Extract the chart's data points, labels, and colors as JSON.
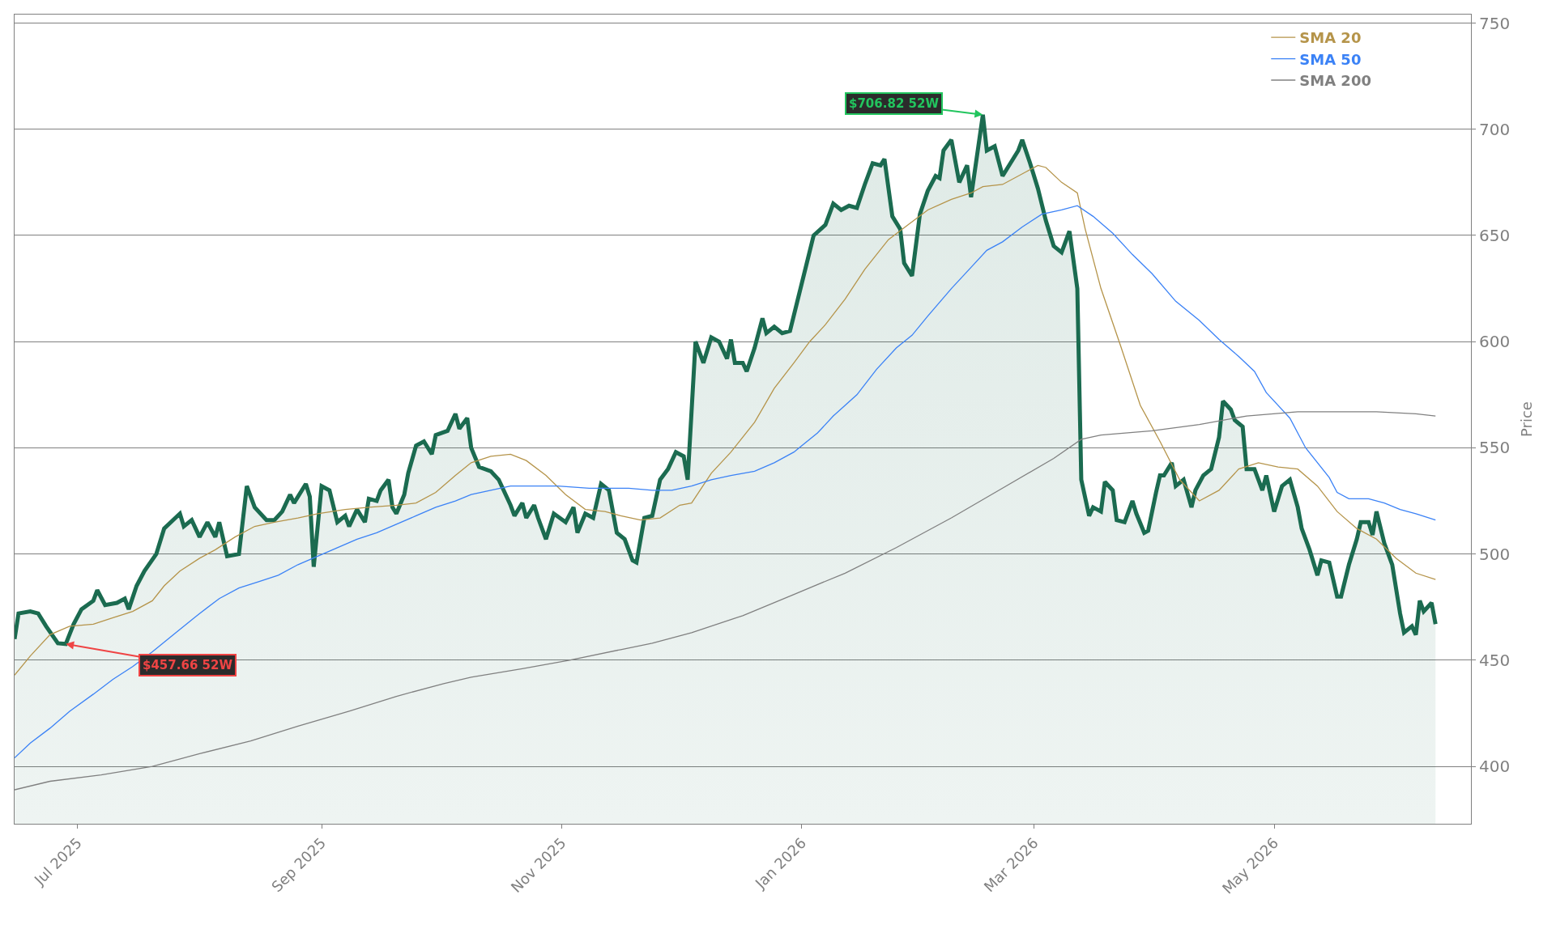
{
  "chart_data": {
    "type": "line",
    "ylabel": "Price",
    "xlim": [
      "2025-06-15",
      "2026-06-20"
    ],
    "ylim": [
      373,
      754
    ],
    "xticks": [
      {
        "value": "2025-07-01",
        "label": "Jul 2025"
      },
      {
        "value": "2025-09-01",
        "label": "Sep 2025"
      },
      {
        "value": "2025-11-01",
        "label": "Nov 2025"
      },
      {
        "value": "2026-01-01",
        "label": "Jan 2026"
      },
      {
        "value": "2026-03-01",
        "label": "Mar 2026"
      },
      {
        "value": "2026-05-01",
        "label": "May 2026"
      }
    ],
    "yticks": [
      400,
      450,
      500,
      550,
      600,
      650,
      700,
      750
    ],
    "grid": "y",
    "legend": "top right",
    "annotations": [
      {
        "text": "$706.82 52W",
        "x": "2026-02-16",
        "y": 706.82
      },
      {
        "text": "$457.66 52W",
        "x": "2025-06-28",
        "y": 457.66
      }
    ],
    "series": [
      {
        "type": "area",
        "color": "#1b6b50",
        "x": [
          "2025-06-15",
          "2025-06-16",
          "2025-06-19",
          "2025-06-21",
          "2025-06-23",
          "2025-06-26",
          "2025-06-28",
          "2025-06-30",
          "2025-07-02",
          "2025-07-05",
          "2025-07-06",
          "2025-07-08",
          "2025-07-11",
          "2025-07-13",
          "2025-07-14",
          "2025-07-16",
          "2025-07-18",
          "2025-07-21",
          "2025-07-23",
          "2025-07-27",
          "2025-07-28",
          "2025-07-30",
          "2025-08-01",
          "2025-08-03",
          "2025-08-05",
          "2025-08-06",
          "2025-08-08",
          "2025-08-11",
          "2025-08-13",
          "2025-08-15",
          "2025-08-18",
          "2025-08-20",
          "2025-08-22",
          "2025-08-24",
          "2025-08-25",
          "2025-08-28",
          "2025-08-29",
          "2025-08-30",
          "2025-09-01",
          "2025-09-03",
          "2025-09-05",
          "2025-09-07",
          "2025-09-08",
          "2025-09-10",
          "2025-09-12",
          "2025-09-13",
          "2025-09-15",
          "2025-09-16",
          "2025-09-18",
          "2025-09-19",
          "2025-09-20",
          "2025-09-22",
          "2025-09-23",
          "2025-09-25",
          "2025-09-27",
          "2025-09-29",
          "2025-09-30",
          "2025-10-03",
          "2025-10-05",
          "2025-10-06",
          "2025-10-08",
          "2025-10-09",
          "2025-10-11",
          "2025-10-14",
          "2025-10-16",
          "2025-10-17",
          "2025-10-19",
          "2025-10-20",
          "2025-10-22",
          "2025-10-23",
          "2025-10-25",
          "2025-10-26",
          "2025-10-28",
          "2025-10-30",
          "2025-11-02",
          "2025-11-04",
          "2025-11-05",
          "2025-11-07",
          "2025-11-09",
          "2025-11-11",
          "2025-11-13",
          "2025-11-15",
          "2025-11-17",
          "2025-11-19",
          "2025-11-20",
          "2025-11-22",
          "2025-11-24",
          "2025-11-26",
          "2025-11-28",
          "2025-11-30",
          "2025-12-02",
          "2025-12-03",
          "2025-12-05",
          "2025-12-07",
          "2025-12-09",
          "2025-12-11",
          "2025-12-13",
          "2025-12-14",
          "2025-12-15",
          "2025-12-17",
          "2025-12-18",
          "2025-12-20",
          "2025-12-22",
          "2025-12-23",
          "2025-12-25",
          "2025-12-27",
          "2025-12-29",
          "2025-12-31",
          "2026-01-02",
          "2026-01-04",
          "2026-01-07",
          "2026-01-09",
          "2026-01-11",
          "2026-01-13",
          "2026-01-15",
          "2026-01-17",
          "2026-01-19",
          "2026-01-21",
          "2026-01-22",
          "2026-01-24",
          "2026-01-26",
          "2026-01-27",
          "2026-01-29",
          "2026-01-31",
          "2026-02-02",
          "2026-02-04",
          "2026-02-05",
          "2026-02-06",
          "2026-02-08",
          "2026-02-10",
          "2026-02-12",
          "2026-02-13",
          "2026-02-16",
          "2026-02-17",
          "2026-02-19",
          "2026-02-21",
          "2026-02-23",
          "2026-02-25",
          "2026-02-26",
          "2026-02-28",
          "2026-03-02",
          "2026-03-04",
          "2026-03-06",
          "2026-03-08",
          "2026-03-10",
          "2026-03-12",
          "2026-03-13",
          "2026-03-15",
          "2026-03-16",
          "2026-03-18",
          "2026-03-19",
          "2026-03-21",
          "2026-03-22",
          "2026-03-24",
          "2026-03-26",
          "2026-03-27",
          "2026-03-29",
          "2026-03-30",
          "2026-04-01",
          "2026-04-02",
          "2026-04-03",
          "2026-04-05",
          "2026-04-06",
          "2026-04-08",
          "2026-04-10",
          "2026-04-11",
          "2026-04-13",
          "2026-04-15",
          "2026-04-17",
          "2026-04-18",
          "2026-04-20",
          "2026-04-21",
          "2026-04-23",
          "2026-04-24",
          "2026-04-26",
          "2026-04-28",
          "2026-04-29",
          "2026-05-01",
          "2026-05-03",
          "2026-05-05",
          "2026-05-07",
          "2026-05-08",
          "2026-05-10",
          "2026-05-12",
          "2026-05-13",
          "2026-05-15",
          "2026-05-17",
          "2026-05-18",
          "2026-05-20",
          "2026-05-22",
          "2026-05-23",
          "2026-05-25",
          "2026-05-26",
          "2026-05-27",
          "2026-05-29",
          "2026-05-31",
          "2026-06-02",
          "2026-06-03",
          "2026-06-05",
          "2026-06-06",
          "2026-06-07",
          "2026-06-08",
          "2026-06-10",
          "2026-06-11"
        ],
        "values": [
          460,
          472,
          473,
          472,
          466,
          458,
          457.66,
          467,
          474,
          478,
          483,
          476,
          477,
          479,
          474,
          485,
          492,
          500,
          512,
          519,
          513,
          516,
          508,
          515,
          508,
          515,
          499,
          500,
          532,
          522,
          516,
          516,
          520,
          528,
          524,
          533,
          527,
          494,
          532,
          530,
          515,
          518,
          513,
          521,
          515,
          526,
          525,
          530,
          535,
          522,
          519,
          528,
          538,
          551,
          553,
          547,
          556,
          558,
          566,
          559,
          564,
          550,
          541,
          539,
          535,
          531,
          523,
          518,
          524,
          517,
          523,
          517,
          507,
          519,
          515,
          522,
          510,
          519,
          517,
          533,
          530,
          510,
          507,
          497,
          496,
          517,
          518,
          535,
          540,
          548,
          546,
          535,
          600,
          590,
          602,
          600,
          592,
          601,
          590,
          590,
          586,
          597,
          611,
          604,
          607,
          604,
          605,
          620,
          635,
          650,
          655,
          665,
          662,
          664,
          663,
          674,
          684,
          683,
          686,
          659,
          653,
          637,
          631,
          660,
          671,
          678,
          677,
          690,
          695,
          675,
          683,
          668,
          706.82,
          690,
          692,
          678,
          684,
          690,
          695,
          684,
          672,
          657,
          645,
          642,
          652,
          625,
          535,
          518,
          522,
          520,
          534,
          530,
          516,
          515,
          525,
          519,
          510,
          511,
          529,
          537,
          537,
          543,
          532,
          535,
          522,
          530,
          537,
          540,
          555,
          572,
          568,
          563,
          560,
          540,
          540,
          530,
          537,
          520,
          532,
          535,
          522,
          512,
          502,
          490,
          497,
          496,
          480,
          480,
          495,
          507,
          515,
          515,
          509,
          520,
          505,
          495,
          472,
          463,
          466,
          462,
          478,
          473,
          477,
          467
        ]
      },
      {
        "name": "SMA 20",
        "color": "#b5944a",
        "x": [
          "2025-06-15",
          "2025-06-19",
          "2025-06-24",
          "2025-06-29",
          "2025-07-05",
          "2025-07-10",
          "2025-07-15",
          "2025-07-20",
          "2025-07-23",
          "2025-07-27",
          "2025-08-01",
          "2025-08-05",
          "2025-08-10",
          "2025-08-15",
          "2025-08-20",
          "2025-08-26",
          "2025-08-31",
          "2025-09-07",
          "2025-09-13",
          "2025-09-20",
          "2025-09-25",
          "2025-09-30",
          "2025-10-05",
          "2025-10-09",
          "2025-10-14",
          "2025-10-19",
          "2025-10-23",
          "2025-10-28",
          "2025-11-02",
          "2025-11-07",
          "2025-11-12",
          "2025-11-16",
          "2025-11-21",
          "2025-11-26",
          "2025-12-01",
          "2025-12-04",
          "2025-12-09",
          "2025-12-14",
          "2025-12-20",
          "2025-12-25",
          "2025-12-30",
          "2026-01-03",
          "2026-01-07",
          "2026-01-12",
          "2026-01-17",
          "2026-01-23",
          "2026-01-28",
          "2026-02-02",
          "2026-02-08",
          "2026-02-13",
          "2026-02-16",
          "2026-02-21",
          "2026-02-27",
          "2026-03-02",
          "2026-03-04",
          "2026-03-08",
          "2026-03-12",
          "2026-03-14",
          "2026-03-18",
          "2026-03-23",
          "2026-03-28",
          "2026-04-02",
          "2026-04-07",
          "2026-04-12",
          "2026-04-17",
          "2026-04-22",
          "2026-04-27",
          "2026-05-02",
          "2026-05-07",
          "2026-05-12",
          "2026-05-17",
          "2026-05-22",
          "2026-05-27",
          "2026-06-01",
          "2026-06-06",
          "2026-06-11"
        ],
        "values": [
          443,
          452,
          462,
          466,
          467,
          470,
          473,
          478,
          485,
          492,
          498,
          502,
          508,
          513,
          515,
          517,
          519,
          521,
          522,
          523,
          524,
          529,
          537,
          543,
          546,
          547,
          544,
          537,
          528,
          521,
          520,
          518,
          516,
          517,
          523,
          524,
          538,
          548,
          562,
          578,
          590,
          600,
          608,
          620,
          634,
          648,
          655,
          662,
          667,
          670,
          673,
          674,
          680,
          683,
          682,
          675,
          670,
          653,
          625,
          598,
          570,
          553,
          535,
          525,
          530,
          540,
          543,
          541,
          540,
          532,
          520,
          512,
          507,
          498,
          491,
          488
        ]
      },
      {
        "name": "SMA 50",
        "color": "#3b82f6",
        "x": [
          "2025-06-15",
          "2025-06-19",
          "2025-06-24",
          "2025-06-29",
          "2025-07-05",
          "2025-07-10",
          "2025-07-15",
          "2025-07-20",
          "2025-07-26",
          "2025-08-01",
          "2025-08-06",
          "2025-08-11",
          "2025-08-16",
          "2025-08-21",
          "2025-08-26",
          "2025-08-31",
          "2025-09-05",
          "2025-09-10",
          "2025-09-15",
          "2025-09-20",
          "2025-09-25",
          "2025-09-30",
          "2025-10-05",
          "2025-10-09",
          "2025-10-14",
          "2025-10-19",
          "2025-10-24",
          "2025-10-31",
          "2025-11-08",
          "2025-11-18",
          "2025-11-24",
          "2025-11-29",
          "2025-12-04",
          "2025-12-09",
          "2025-12-14",
          "2025-12-20",
          "2025-12-25",
          "2025-12-30",
          "2026-01-01",
          "2026-01-05",
          "2026-01-09",
          "2026-01-15",
          "2026-01-20",
          "2026-01-25",
          "2026-01-29",
          "2026-02-02",
          "2026-02-08",
          "2026-02-13",
          "2026-02-17",
          "2026-02-21",
          "2026-02-26",
          "2026-03-03",
          "2026-03-08",
          "2026-03-12",
          "2026-03-16",
          "2026-03-21",
          "2026-03-26",
          "2026-03-31",
          "2026-04-06",
          "2026-04-12",
          "2026-04-17",
          "2026-04-22",
          "2026-04-26",
          "2026-04-29",
          "2026-05-05",
          "2026-05-09",
          "2026-05-15",
          "2026-05-17",
          "2026-05-20",
          "2026-05-25",
          "2026-05-29",
          "2026-06-02",
          "2026-06-06",
          "2026-06-11"
        ],
        "values": [
          404,
          411,
          418,
          426,
          434,
          441,
          447,
          454,
          463,
          472,
          479,
          484,
          487,
          490,
          495,
          499,
          503,
          507,
          510,
          514,
          518,
          522,
          525,
          528,
          530,
          532,
          532,
          532,
          531,
          531,
          530,
          530,
          532,
          535,
          537,
          539,
          543,
          548,
          551,
          557,
          565,
          575,
          587,
          597,
          603,
          612,
          625,
          635,
          643,
          647,
          654,
          660,
          662,
          664,
          659,
          651,
          641,
          632,
          619,
          610,
          601,
          593,
          586,
          576,
          564,
          550,
          536,
          529,
          526,
          526,
          524,
          521,
          519,
          516
        ]
      },
      {
        "name": "SMA 200",
        "color": "#808080",
        "x": [
          "2025-06-15",
          "2025-06-24",
          "2025-07-07",
          "2025-07-20",
          "2025-08-01",
          "2025-08-14",
          "2025-08-26",
          "2025-09-08",
          "2025-09-20",
          "2025-10-02",
          "2025-10-09",
          "2025-10-22",
          "2025-11-03",
          "2025-11-16",
          "2025-11-24",
          "2025-12-04",
          "2025-12-17",
          "2025-12-30",
          "2026-01-12",
          "2026-01-25",
          "2026-02-08",
          "2026-02-21",
          "2026-03-06",
          "2026-03-13",
          "2026-03-18",
          "2026-03-31",
          "2026-04-12",
          "2026-04-24",
          "2026-05-07",
          "2026-05-20",
          "2026-05-27",
          "2026-06-06",
          "2026-06-11"
        ],
        "values": [
          389,
          393,
          396,
          400,
          406,
          412,
          419,
          426,
          433,
          439,
          442,
          446,
          450,
          455,
          458,
          463,
          471,
          481,
          491,
          503,
          517,
          531,
          545,
          554,
          556,
          558,
          561,
          565,
          567,
          567,
          567,
          566,
          565
        ]
      }
    ]
  }
}
